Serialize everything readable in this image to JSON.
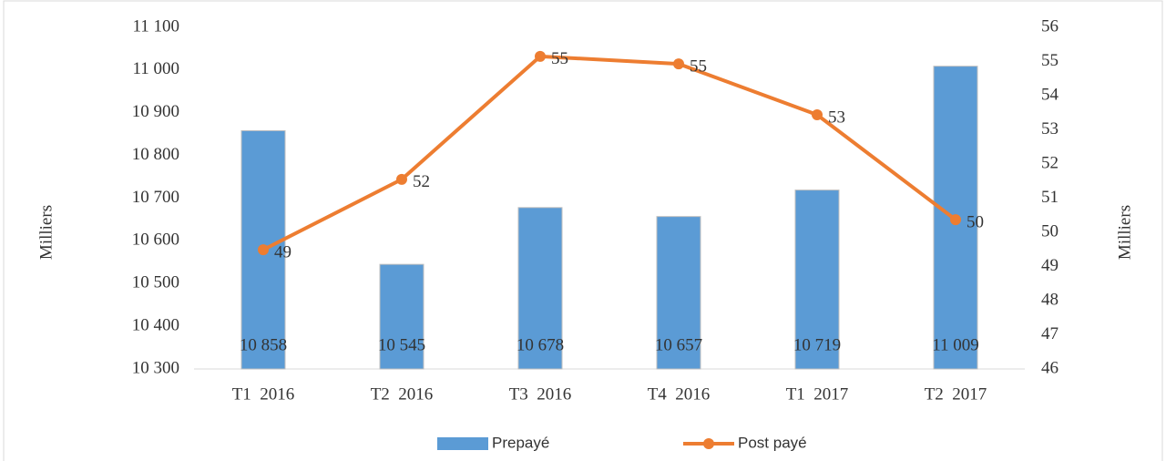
{
  "chart_data": {
    "type": "bar-line",
    "categories": [
      "T1  2016",
      "T2  2016",
      "T3  2016",
      "T4  2016",
      "T1  2017",
      "T2  2017"
    ],
    "y_label": "Milliers",
    "y2_label": "Milliers",
    "ylim": [
      10300,
      11100
    ],
    "yticks": [
      {
        "value": 10300,
        "label": "10 300"
      },
      {
        "value": 10400,
        "label": "10 400"
      },
      {
        "value": 10500,
        "label": "10 500"
      },
      {
        "value": 10600,
        "label": "10 600"
      },
      {
        "value": 10700,
        "label": "10 700"
      },
      {
        "value": 10800,
        "label": "10 800"
      },
      {
        "value": 10900,
        "label": "10 900"
      },
      {
        "value": 11000,
        "label": "11 000"
      },
      {
        "value": 11100,
        "label": "11 100"
      }
    ],
    "y2lim": [
      46,
      56
    ],
    "y2ticks": [
      46,
      47,
      48,
      49,
      50,
      51,
      52,
      53,
      54,
      55,
      56
    ],
    "legend": "bottom",
    "series": [
      {
        "name": "Prepayé",
        "type": "bar",
        "color": "#5b9bd5",
        "values": [
          10858,
          10545,
          10678,
          10657,
          10719,
          11009
        ],
        "value_labels": [
          "10 858",
          "10 545",
          "10 678",
          "10 657",
          "10 719",
          "11 009"
        ]
      },
      {
        "name": "Post payé",
        "type": "line",
        "axis": "y2",
        "color": "#ed7d31",
        "values": [
          49.49,
          51.55,
          55.15,
          54.93,
          53.44,
          50.37
        ],
        "value_labels": [
          "49",
          "52",
          "55",
          "55",
          "53",
          "50"
        ]
      }
    ]
  }
}
